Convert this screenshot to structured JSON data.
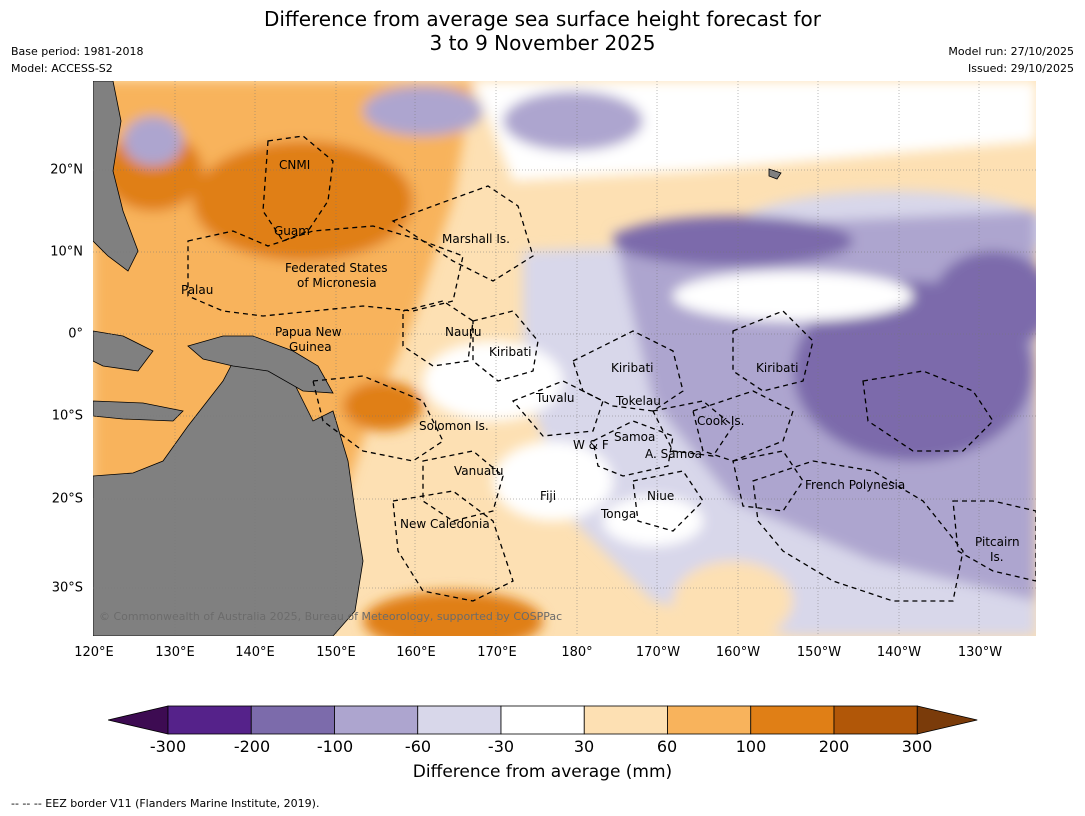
{
  "title_line1": "Difference from average sea surface height forecast for",
  "title_line2": "3 to 9 November 2025",
  "meta_left": [
    "Base period: 1981-2018",
    "Model: ACCESS-S2"
  ],
  "meta_right": [
    "Model run: 27/10/2025",
    "Issued: 29/10/2025"
  ],
  "lat_labels": [
    "20°N",
    "10°N",
    "0°",
    "10°S",
    "20°S",
    "30°S"
  ],
  "lon_labels": [
    "120°E",
    "130°E",
    "140°E",
    "150°E",
    "160°E",
    "170°E",
    "180°",
    "170°W",
    "160°W",
    "150°W",
    "140°W",
    "130°W"
  ],
  "regions": [
    "CNMI",
    "Guam",
    "Marshall Is.",
    "Federated States",
    "of Micronesia",
    "Palau",
    "Nauru",
    "Papua New",
    "Guinea",
    "Kiribati",
    "Kiribati",
    "Kiribati",
    "Tuvalu",
    "Tokelau",
    "Cook Is.",
    "Solomon Is.",
    "W & F",
    "Samoa",
    "A. Samoa",
    "Vanuatu",
    "Fiji",
    "Niue",
    "Tonga",
    "French Polynesia",
    "New Caledonia",
    "Pitcairn",
    "Is."
  ],
  "copyright": "© Commonwealth of Australia 2025, Bureau of Meteorology, supported by COSPPac",
  "colorbar": {
    "ticks": [
      "-300",
      "-200",
      "-100",
      "-60",
      "-30",
      "30",
      "60",
      "100",
      "200",
      "300"
    ],
    "colors": [
      "#3d0b52",
      "#55228a",
      "#7c6bab",
      "#ada5cf",
      "#d8d7ea",
      "#ffffff",
      "#fde0b3",
      "#f8b35c",
      "#e07f16",
      "#b15708",
      "#7a3b0a"
    ],
    "label": "Difference from average (mm)"
  },
  "legend": "--  --  -- EEZ border V11 (Flanders Marine Institute, 2019)."
}
